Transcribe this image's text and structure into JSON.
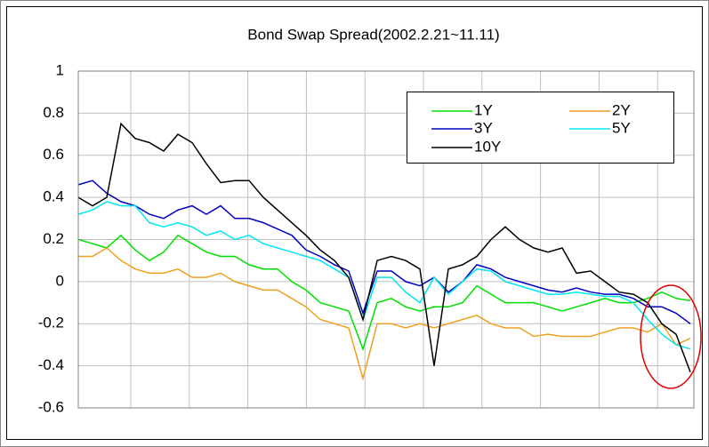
{
  "chart_data": {
    "type": "line",
    "title": "Bond Swap Spread(2002.2.21~11.11)",
    "categories": [
      null,
      null,
      null,
      null,
      null,
      null,
      null,
      null,
      null,
      null,
      null,
      null,
      null,
      null,
      null,
      null,
      null,
      null,
      null,
      null,
      null,
      null,
      null,
      null,
      null,
      null,
      null,
      null,
      null,
      null,
      null,
      null,
      null,
      null,
      null,
      null,
      null,
      null,
      null,
      null,
      null,
      null,
      null,
      null
    ],
    "series": [
      {
        "name": "1Y",
        "color": "#00e000",
        "values": [
          0.2,
          0.18,
          0.16,
          0.22,
          0.15,
          0.1,
          0.14,
          0.22,
          0.18,
          0.14,
          0.12,
          0.12,
          0.08,
          0.06,
          0.06,
          0.0,
          -0.04,
          -0.1,
          -0.12,
          -0.14,
          -0.32,
          -0.1,
          -0.08,
          -0.12,
          -0.14,
          -0.12,
          -0.12,
          -0.1,
          -0.02,
          -0.06,
          -0.1,
          -0.1,
          -0.1,
          -0.12,
          -0.14,
          -0.12,
          -0.1,
          -0.08,
          -0.1,
          -0.1,
          -0.08,
          -0.05,
          -0.08,
          -0.09
        ]
      },
      {
        "name": "2Y",
        "color": "#f0a020",
        "values": [
          0.12,
          0.12,
          0.16,
          0.1,
          0.06,
          0.04,
          0.04,
          0.06,
          0.02,
          0.02,
          0.04,
          0.0,
          -0.02,
          -0.04,
          -0.04,
          -0.08,
          -0.12,
          -0.18,
          -0.2,
          -0.22,
          -0.46,
          -0.2,
          -0.2,
          -0.22,
          -0.2,
          -0.22,
          -0.2,
          -0.18,
          -0.16,
          -0.2,
          -0.22,
          -0.22,
          -0.26,
          -0.25,
          -0.26,
          -0.26,
          -0.26,
          -0.24,
          -0.22,
          -0.22,
          -0.24,
          -0.2,
          -0.3,
          -0.27
        ]
      },
      {
        "name": "3Y",
        "color": "#0000c0",
        "values": [
          0.46,
          0.48,
          0.42,
          0.38,
          0.36,
          0.32,
          0.3,
          0.34,
          0.36,
          0.32,
          0.36,
          0.3,
          0.3,
          0.28,
          0.25,
          0.22,
          0.15,
          0.12,
          0.08,
          0.05,
          -0.15,
          0.05,
          0.05,
          0.0,
          -0.02,
          0.02,
          -0.05,
          0.0,
          0.08,
          0.06,
          0.02,
          0.0,
          -0.02,
          -0.04,
          -0.05,
          -0.03,
          -0.05,
          -0.06,
          -0.06,
          -0.08,
          -0.12,
          -0.12,
          -0.15,
          -0.2
        ]
      },
      {
        "name": "5Y",
        "color": "#00e8f0",
        "values": [
          0.32,
          0.34,
          0.38,
          0.36,
          0.36,
          0.28,
          0.26,
          0.28,
          0.26,
          0.22,
          0.24,
          0.2,
          0.22,
          0.18,
          0.16,
          0.14,
          0.12,
          0.1,
          0.06,
          0.02,
          -0.18,
          0.02,
          0.02,
          -0.05,
          -0.1,
          0.02,
          -0.06,
          0.0,
          0.06,
          0.05,
          0.0,
          -0.02,
          -0.04,
          -0.06,
          -0.06,
          -0.05,
          -0.06,
          -0.07,
          -0.07,
          -0.1,
          -0.18,
          -0.25,
          -0.3,
          -0.32
        ]
      },
      {
        "name": "10Y",
        "color": "#000000",
        "values": [
          0.4,
          0.36,
          0.4,
          0.75,
          0.68,
          0.66,
          0.62,
          0.7,
          0.66,
          0.56,
          0.47,
          0.48,
          0.48,
          0.4,
          0.34,
          0.28,
          0.22,
          0.15,
          0.1,
          0.02,
          -0.18,
          0.1,
          0.12,
          0.1,
          0.06,
          -0.4,
          0.06,
          0.08,
          0.12,
          0.2,
          0.26,
          0.2,
          0.16,
          0.14,
          0.16,
          0.04,
          0.05,
          0.0,
          -0.05,
          -0.06,
          -0.1,
          -0.2,
          -0.25,
          -0.43
        ]
      }
    ],
    "ylim": [
      -0.6,
      1
    ],
    "yticks": [
      -0.6,
      -0.4,
      -0.2,
      0,
      0.2,
      0.4,
      0.6,
      0.8,
      1
    ],
    "grid": true
  }
}
